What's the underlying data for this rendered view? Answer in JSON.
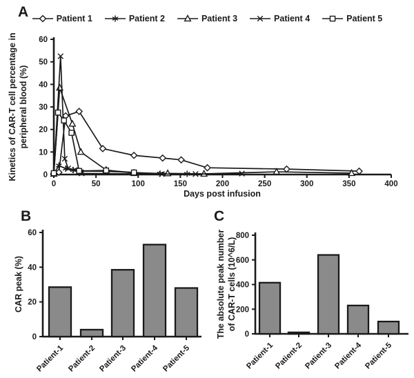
{
  "figure": {
    "panel_a_label": "A",
    "panel_b_label": "B",
    "panel_c_label": "C"
  },
  "colors": {
    "line": "#1a1a1a",
    "axis": "#1a1a1a",
    "bar_fill": "#8a8a8a",
    "bar_stroke": "#1a1a1a",
    "background": "#ffffff"
  },
  "chart_data": [
    {
      "id": "kinetics",
      "type": "line",
      "xlabel": "Days post infusion",
      "ylabel_line1": "Kinetics of CAR-T cell percentage in",
      "ylabel_line2": "peripheral blood (%)",
      "xlim": [
        0,
        400
      ],
      "ylim": [
        0,
        60
      ],
      "xticks": [
        0,
        50,
        100,
        150,
        200,
        250,
        300,
        350,
        400
      ],
      "yticks": [
        0,
        10,
        20,
        30,
        40,
        50,
        60
      ],
      "grid": false,
      "legend_position": "top",
      "series": [
        {
          "name": "Patient 1",
          "marker": "diamond",
          "points": [
            [
              0,
              0.5
            ],
            [
              6,
              1
            ],
            [
              14,
              26
            ],
            [
              30,
              28
            ],
            [
              58,
              11.5
            ],
            [
              95,
              8.5
            ],
            [
              129,
              7.3
            ],
            [
              151,
              6.5
            ],
            [
              182,
              3
            ],
            [
              276,
              2.4
            ],
            [
              362,
              1.5
            ]
          ]
        },
        {
          "name": "Patient 2",
          "marker": "asterisk",
          "points": [
            [
              0,
              0.3
            ],
            [
              6,
              4
            ],
            [
              14,
              2.6
            ],
            [
              23,
              2
            ],
            [
              32,
              1.5
            ],
            [
              62,
              1.4
            ],
            [
              95,
              0.9
            ],
            [
              126,
              0.4
            ],
            [
              158,
              0.3
            ]
          ]
        },
        {
          "name": "Patient 3",
          "marker": "triangle",
          "points": [
            [
              0,
              0.3
            ],
            [
              7,
              38.5
            ],
            [
              22,
              22.5
            ],
            [
              32,
              10
            ],
            [
              62,
              2
            ],
            [
              95,
              0.6
            ],
            [
              135,
              0.5
            ],
            [
              178,
              0.3
            ],
            [
              264,
              1.2
            ],
            [
              353,
              0.6
            ]
          ]
        },
        {
          "name": "Patient 4",
          "marker": "x-cross",
          "points": [
            [
              0,
              0.3
            ],
            [
              8,
              52.5
            ],
            [
              13,
              7
            ],
            [
              17,
              2.7
            ],
            [
              25,
              2
            ],
            [
              33,
              0.5
            ],
            [
              128,
              0.2
            ],
            [
              168,
              0.2
            ],
            [
              223,
              0.4
            ]
          ]
        },
        {
          "name": "Patient 5",
          "marker": "square",
          "points": [
            [
              0,
              0.6
            ],
            [
              5,
              27.5
            ],
            [
              12,
              24
            ],
            [
              21,
              18.5
            ],
            [
              30,
              1.6
            ],
            [
              62,
              1.8
            ],
            [
              95,
              0.9
            ]
          ]
        }
      ]
    },
    {
      "id": "car_peak",
      "type": "bar",
      "ylabel": "CAR peak (%)",
      "categories": [
        "Patient-1",
        "Patient-2",
        "Patient-3",
        "Patient-4",
        "Patient-5"
      ],
      "values": [
        28.5,
        4,
        38.5,
        53,
        28
      ],
      "ylim": [
        0,
        60
      ],
      "yticks": [
        0,
        20,
        40,
        60
      ],
      "grid": false
    },
    {
      "id": "absolute_peak",
      "type": "bar",
      "ylabel_line1": "The absolute peak number",
      "ylabel_line2": "of CAR-T cells (10^6/L)",
      "categories": [
        "Patient-1",
        "Patient-2",
        "Patient-3",
        "Patient-4",
        "Patient-5"
      ],
      "values": [
        415,
        12,
        640,
        230,
        100
      ],
      "ylim": [
        0,
        800
      ],
      "yticks": [
        0,
        200,
        400,
        600,
        800
      ],
      "grid": false
    }
  ]
}
